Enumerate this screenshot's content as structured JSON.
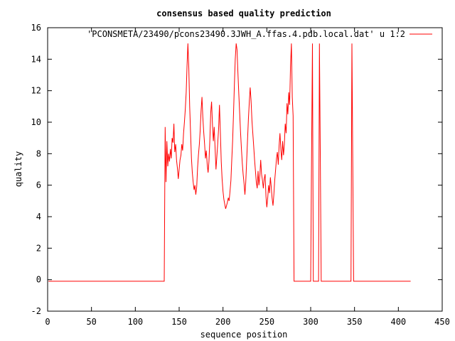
{
  "chart_data": {
    "type": "line",
    "title": "consensus based quality prediction",
    "xlabel": "sequence position",
    "ylabel": "quality",
    "xlim": [
      0,
      450
    ],
    "ylim": [
      -2,
      16
    ],
    "xticks": [
      0,
      50,
      100,
      150,
      200,
      250,
      300,
      350,
      400,
      450
    ],
    "yticks": [
      -2,
      0,
      2,
      4,
      6,
      8,
      10,
      12,
      14,
      16
    ],
    "grid": false,
    "legend_position": "top-right",
    "series": [
      {
        "name": "'PCONSMETA/23490/pcons23490.3JWH_A.ffas.4.pdb.local.dat' u 1:2",
        "color": "#ff0000",
        "points": [
          [
            1,
            -0.1
          ],
          [
            50,
            -0.1
          ],
          [
            100,
            -0.1
          ],
          [
            133,
            -0.1
          ],
          [
            134,
            9.7
          ],
          [
            135,
            6.2
          ],
          [
            136,
            8.8
          ],
          [
            137,
            7.2
          ],
          [
            138,
            8.0
          ],
          [
            139,
            7.5
          ],
          [
            140,
            8.3
          ],
          [
            141,
            7.7
          ],
          [
            142,
            9.0
          ],
          [
            143,
            8.7
          ],
          [
            144,
            9.9
          ],
          [
            145,
            8.1
          ],
          [
            146,
            8.6
          ],
          [
            147,
            7.6
          ],
          [
            148,
            7.1
          ],
          [
            149,
            6.4
          ],
          [
            150,
            7.0
          ],
          [
            151,
            7.6
          ],
          [
            152,
            7.9
          ],
          [
            153,
            8.6
          ],
          [
            154,
            8.2
          ],
          [
            155,
            9.3
          ],
          [
            156,
            10.0
          ],
          [
            157,
            10.8
          ],
          [
            158,
            11.9
          ],
          [
            159,
            13.6
          ],
          [
            160,
            15.0
          ],
          [
            161,
            13.4
          ],
          [
            162,
            11.0
          ],
          [
            163,
            9.4
          ],
          [
            164,
            7.7
          ],
          [
            165,
            6.8
          ],
          [
            166,
            6.2
          ],
          [
            167,
            5.7
          ],
          [
            168,
            6.0
          ],
          [
            169,
            5.4
          ],
          [
            170,
            5.9
          ],
          [
            171,
            7.1
          ],
          [
            172,
            7.9
          ],
          [
            173,
            8.6
          ],
          [
            174,
            9.5
          ],
          [
            175,
            10.7
          ],
          [
            176,
            11.6
          ],
          [
            177,
            10.3
          ],
          [
            178,
            9.4
          ],
          [
            179,
            8.6
          ],
          [
            180,
            7.7
          ],
          [
            181,
            8.2
          ],
          [
            182,
            7.3
          ],
          [
            183,
            6.8
          ],
          [
            184,
            7.5
          ],
          [
            185,
            8.9
          ],
          [
            186,
            10.6
          ],
          [
            187,
            11.3
          ],
          [
            188,
            9.8
          ],
          [
            189,
            8.8
          ],
          [
            190,
            9.7
          ],
          [
            191,
            8.3
          ],
          [
            192,
            7.0
          ],
          [
            193,
            7.8
          ],
          [
            194,
            8.7
          ],
          [
            195,
            9.6
          ],
          [
            196,
            11.1
          ],
          [
            197,
            9.3
          ],
          [
            198,
            7.5
          ],
          [
            199,
            6.4
          ],
          [
            200,
            5.6
          ],
          [
            201,
            5.1
          ],
          [
            202,
            4.8
          ],
          [
            203,
            4.5
          ],
          [
            204,
            4.7
          ],
          [
            205,
            4.9
          ],
          [
            206,
            5.2
          ],
          [
            207,
            5.0
          ],
          [
            208,
            5.6
          ],
          [
            209,
            6.3
          ],
          [
            210,
            7.6
          ],
          [
            211,
            8.8
          ],
          [
            212,
            10.6
          ],
          [
            213,
            12.4
          ],
          [
            214,
            14.0
          ],
          [
            215,
            15.0
          ],
          [
            216,
            14.6
          ],
          [
            217,
            13.2
          ],
          [
            218,
            11.8
          ],
          [
            219,
            10.6
          ],
          [
            220,
            9.4
          ],
          [
            221,
            8.3
          ],
          [
            222,
            7.4
          ],
          [
            223,
            6.7
          ],
          [
            224,
            6.1
          ],
          [
            225,
            5.4
          ],
          [
            226,
            6.2
          ],
          [
            227,
            7.6
          ],
          [
            228,
            8.9
          ],
          [
            229,
            10.2
          ],
          [
            230,
            11.3
          ],
          [
            231,
            12.2
          ],
          [
            232,
            11.4
          ],
          [
            233,
            10.1
          ],
          [
            234,
            9.3
          ],
          [
            235,
            8.5
          ],
          [
            236,
            7.6
          ],
          [
            237,
            6.9
          ],
          [
            238,
            6.2
          ],
          [
            239,
            5.8
          ],
          [
            240,
            6.9
          ],
          [
            241,
            6.0
          ],
          [
            242,
            6.6
          ],
          [
            243,
            7.6
          ],
          [
            244,
            6.7
          ],
          [
            245,
            6.3
          ],
          [
            246,
            5.8
          ],
          [
            247,
            6.4
          ],
          [
            248,
            6.7
          ],
          [
            249,
            5.3
          ],
          [
            250,
            4.6
          ],
          [
            251,
            5.2
          ],
          [
            252,
            6.0
          ],
          [
            253,
            5.5
          ],
          [
            254,
            6.5
          ],
          [
            255,
            5.9
          ],
          [
            256,
            5.2
          ],
          [
            257,
            4.7
          ],
          [
            258,
            5.4
          ],
          [
            259,
            6.3
          ],
          [
            260,
            7.0
          ],
          [
            261,
            7.7
          ],
          [
            262,
            8.1
          ],
          [
            263,
            7.3
          ],
          [
            264,
            8.5
          ],
          [
            265,
            9.3
          ],
          [
            266,
            8.2
          ],
          [
            267,
            7.6
          ],
          [
            268,
            8.8
          ],
          [
            269,
            7.9
          ],
          [
            270,
            8.6
          ],
          [
            271,
            9.9
          ],
          [
            272,
            9.3
          ],
          [
            273,
            11.2
          ],
          [
            274,
            10.5
          ],
          [
            275,
            11.9
          ],
          [
            276,
            11.1
          ],
          [
            277,
            13.5
          ],
          [
            278,
            15.0
          ],
          [
            279,
            11.6
          ],
          [
            280,
            10.4
          ],
          [
            281,
            -0.1
          ],
          [
            300,
            -0.1
          ],
          [
            301,
            7.5
          ],
          [
            302,
            15.0
          ],
          [
            303,
            -0.1
          ],
          [
            309,
            -0.1
          ],
          [
            310,
            15.0
          ],
          [
            311,
            7.5
          ],
          [
            312,
            -0.1
          ],
          [
            346,
            -0.1
          ],
          [
            347,
            15.0
          ],
          [
            348,
            7.5
          ],
          [
            349,
            -0.1
          ],
          [
            414,
            -0.1
          ]
        ]
      }
    ]
  }
}
